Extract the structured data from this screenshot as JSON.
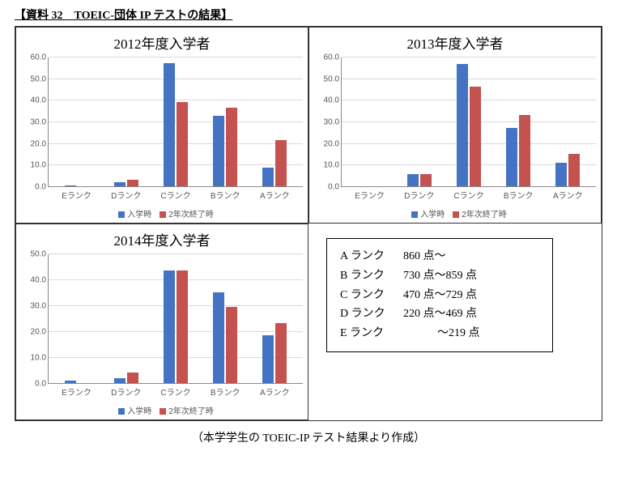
{
  "doc_title": "【資料 32　TOEIC-団体 IP テストの結果】",
  "footer_note": "（本学学生の TOEIC-IP テスト結果より作成）",
  "colors": {
    "series1": "#4473c4",
    "series2": "#c4524e",
    "grid": "#d9d9d9",
    "axis": "#8a8a8a",
    "text": "#595959"
  },
  "legend": {
    "series1": "入学時",
    "series2": "2年次終了時"
  },
  "charts": [
    {
      "title": "2012年度入学者",
      "ylim": [
        0,
        60
      ],
      "ytick_step": 10,
      "categories": [
        "Eランク",
        "Dランク",
        "Cランク",
        "Bランク",
        "Aランク"
      ],
      "series1": [
        0.2,
        2.0,
        57.0,
        32.5,
        8.5
      ],
      "series2": [
        0.0,
        3.0,
        39.0,
        36.5,
        21.5
      ]
    },
    {
      "title": "2013年度入学者",
      "ylim": [
        0,
        60
      ],
      "ytick_step": 10,
      "categories": [
        "Eランク",
        "Dランク",
        "Cランク",
        "Bランク",
        "Aランク"
      ],
      "series1": [
        0.0,
        5.5,
        56.5,
        27.0,
        11.0
      ],
      "series2": [
        0.0,
        5.5,
        46.0,
        33.0,
        15.0
      ]
    },
    {
      "title": "2014年度入学者",
      "ylim": [
        0,
        50
      ],
      "ytick_step": 10,
      "categories": [
        "Eランク",
        "Dランク",
        "Cランク",
        "Bランク",
        "Aランク"
      ],
      "series1": [
        1.0,
        2.0,
        43.5,
        35.0,
        18.5
      ],
      "series2": [
        0.0,
        4.0,
        43.5,
        29.5,
        23.0
      ]
    }
  ],
  "rank_box": {
    "rows": [
      {
        "label": "A ランク",
        "range": "860 点～"
      },
      {
        "label": "B ランク",
        "range": "730 点～859 点"
      },
      {
        "label": "C ランク",
        "range": "470 点～729 点"
      },
      {
        "label": "D ランク",
        "range": "220 点～469 点"
      },
      {
        "label": "E ランク",
        "range": "　　　～219 点"
      }
    ]
  }
}
